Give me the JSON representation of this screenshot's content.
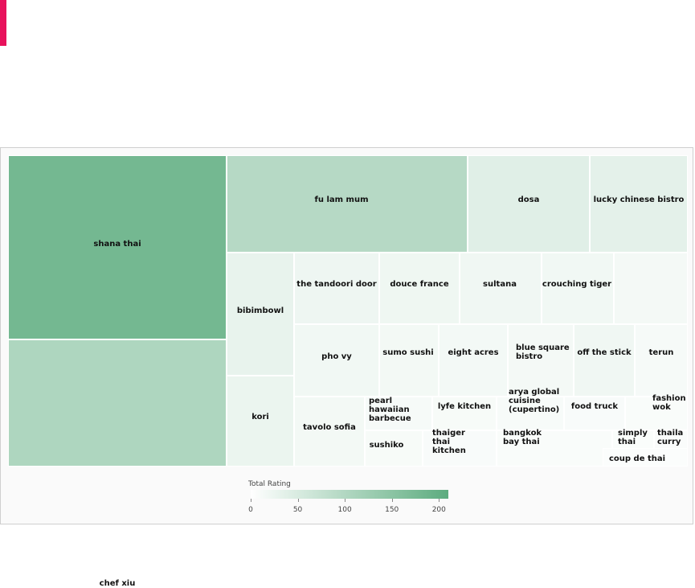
{
  "colors": {
    "accent": "#e8125c",
    "scale_low": "#ffffff",
    "scale_high": "#5dac7f"
  },
  "chart_data": {
    "type": "treemap",
    "title": "",
    "color_metric": "Total Rating",
    "color_range": [
      0,
      210
    ],
    "legend": {
      "title": "Total Rating",
      "ticks": [
        0,
        50,
        100,
        150,
        200
      ],
      "placement": "bottom-center"
    },
    "items": [
      {
        "name": "shana thai",
        "value": 180
      },
      {
        "name": "chef xiu",
        "value": 105
      },
      {
        "name": "fu lam mum",
        "value": 95
      },
      {
        "name": "dosa",
        "value": 40
      },
      {
        "name": "lucky chinese bistro",
        "value": 35
      },
      {
        "name": "bibimbowl",
        "value": 30
      },
      {
        "name": "kori",
        "value": 26
      },
      {
        "name": "the tandoori door",
        "value": 22
      },
      {
        "name": "douce france",
        "value": 21
      },
      {
        "name": "sultana",
        "value": 20
      },
      {
        "name": "crouching tiger",
        "value": 18
      },
      {
        "name": "",
        "value": 14
      },
      {
        "name": "pho vy",
        "value": 18
      },
      {
        "name": "sumo sushi",
        "value": 16
      },
      {
        "name": "eight acres",
        "value": 15
      },
      {
        "name": "blue square bistro",
        "value": 14
      },
      {
        "name": "off the stick",
        "value": 20
      },
      {
        "name": "terun",
        "value": 12
      },
      {
        "name": "tavolo sofia",
        "value": 16
      },
      {
        "name": "pearl hawaiian barbecue",
        "value": 12
      },
      {
        "name": "lyfe kitchen",
        "value": 11
      },
      {
        "name": "arya global cuisine (cupertino)",
        "value": 10
      },
      {
        "name": "food truck",
        "value": 9
      },
      {
        "name": "fashion wok",
        "value": 8
      },
      {
        "name": "sushiko",
        "value": 11
      },
      {
        "name": "thaiger thai kitchen",
        "value": 9
      },
      {
        "name": "bangkok bay thai",
        "value": 8
      },
      {
        "name": "simply thai",
        "value": 6
      },
      {
        "name": "thaila curry",
        "value": 7
      },
      {
        "name": "coup de thai",
        "value": 5
      }
    ]
  }
}
